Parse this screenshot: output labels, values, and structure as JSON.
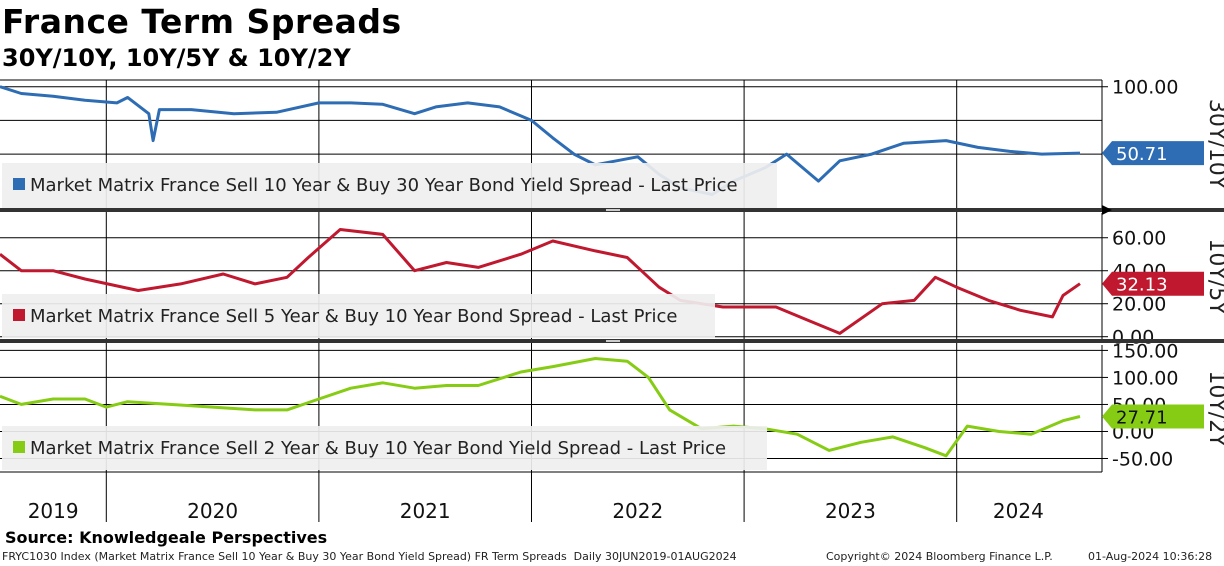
{
  "header": {
    "title": "France Term Spreads",
    "subtitle": "30Y/10Y, 10Y/5Y & 10Y/2Y"
  },
  "footer": {
    "source": "Source: Knowledgeale Perspectives",
    "description": "FRYC1030 Index (Market Matrix France Sell 10 Year & Buy 30 Year Bond Yield Spread) FR Term Spreads  Daily 30JUN2019-01AUG2024",
    "copyright": "Copyright© 2024 Bloomberg Finance L.P.",
    "timestamp": "01-Aug-2024 10:36:28"
  },
  "colors": {
    "blue": "#2E6DB4",
    "red": "#C0182F",
    "green": "#86CC14",
    "grid": "#000000",
    "legend_bg": "#EFEFEF"
  },
  "chart_data": {
    "type": "line",
    "x_axis": {
      "labels": [
        "2019",
        "2020",
        "2021",
        "2022",
        "2023",
        "2024"
      ],
      "start": 2019.5,
      "end": 2024.58
    },
    "panels": [
      {
        "id": "30y10y",
        "axis_title": "30Y/10Y",
        "legend": "Market Matrix France Sell 10 Year & Buy 30 Year Bond Yield Spread - Last Price",
        "last_value": "50.71",
        "ylim": [
          10,
          105
        ],
        "ticks": [
          "100.00"
        ],
        "tick_values": [
          100
        ],
        "gridlines": [
          100,
          75,
          50
        ],
        "series": [
          {
            "x": 2019.5,
            "y": 100
          },
          {
            "x": 2019.6,
            "y": 95
          },
          {
            "x": 2019.75,
            "y": 93
          },
          {
            "x": 2019.9,
            "y": 90
          },
          {
            "x": 2020.05,
            "y": 88
          },
          {
            "x": 2020.1,
            "y": 92
          },
          {
            "x": 2020.2,
            "y": 80
          },
          {
            "x": 2020.22,
            "y": 60
          },
          {
            "x": 2020.25,
            "y": 83
          },
          {
            "x": 2020.4,
            "y": 83
          },
          {
            "x": 2020.6,
            "y": 80
          },
          {
            "x": 2020.8,
            "y": 81
          },
          {
            "x": 2021.0,
            "y": 88
          },
          {
            "x": 2021.15,
            "y": 88
          },
          {
            "x": 2021.3,
            "y": 87
          },
          {
            "x": 2021.45,
            "y": 80
          },
          {
            "x": 2021.55,
            "y": 85
          },
          {
            "x": 2021.7,
            "y": 88
          },
          {
            "x": 2021.85,
            "y": 85
          },
          {
            "x": 2022.0,
            "y": 75
          },
          {
            "x": 2022.1,
            "y": 62
          },
          {
            "x": 2022.2,
            "y": 50
          },
          {
            "x": 2022.3,
            "y": 42
          },
          {
            "x": 2022.4,
            "y": 45
          },
          {
            "x": 2022.5,
            "y": 48
          },
          {
            "x": 2022.6,
            "y": 35
          },
          {
            "x": 2022.7,
            "y": 25
          },
          {
            "x": 2022.85,
            "y": 20
          },
          {
            "x": 2022.95,
            "y": 30
          },
          {
            "x": 2023.1,
            "y": 40
          },
          {
            "x": 2023.2,
            "y": 50
          },
          {
            "x": 2023.35,
            "y": 30
          },
          {
            "x": 2023.45,
            "y": 45
          },
          {
            "x": 2023.6,
            "y": 50
          },
          {
            "x": 2023.75,
            "y": 58
          },
          {
            "x": 2023.95,
            "y": 60
          },
          {
            "x": 2024.1,
            "y": 55
          },
          {
            "x": 2024.25,
            "y": 52
          },
          {
            "x": 2024.4,
            "y": 50
          },
          {
            "x": 2024.58,
            "y": 50.71
          }
        ]
      },
      {
        "id": "10y5y",
        "axis_title": "10Y/5Y",
        "legend": "Market Matrix France Sell 5 Year & Buy 10 Year Bond Spread - Last Price",
        "last_value": "32.13",
        "ylim": [
          -2,
          75
        ],
        "ticks": [
          "60.00",
          "40.00",
          "20.00",
          "0.00"
        ],
        "tick_values": [
          60,
          40,
          20,
          0
        ],
        "gridlines": [
          60,
          40,
          20,
          0
        ],
        "series": [
          {
            "x": 2019.5,
            "y": 50
          },
          {
            "x": 2019.6,
            "y": 40
          },
          {
            "x": 2019.75,
            "y": 40
          },
          {
            "x": 2019.9,
            "y": 35
          },
          {
            "x": 2020.15,
            "y": 28
          },
          {
            "x": 2020.35,
            "y": 32
          },
          {
            "x": 2020.55,
            "y": 38
          },
          {
            "x": 2020.7,
            "y": 32
          },
          {
            "x": 2020.85,
            "y": 36
          },
          {
            "x": 2020.95,
            "y": 48
          },
          {
            "x": 2021.1,
            "y": 65
          },
          {
            "x": 2021.3,
            "y": 62
          },
          {
            "x": 2021.45,
            "y": 40
          },
          {
            "x": 2021.6,
            "y": 45
          },
          {
            "x": 2021.75,
            "y": 42
          },
          {
            "x": 2021.95,
            "y": 50
          },
          {
            "x": 2022.1,
            "y": 58
          },
          {
            "x": 2022.3,
            "y": 52
          },
          {
            "x": 2022.45,
            "y": 48
          },
          {
            "x": 2022.6,
            "y": 30
          },
          {
            "x": 2022.7,
            "y": 22
          },
          {
            "x": 2022.9,
            "y": 18
          },
          {
            "x": 2023.15,
            "y": 18
          },
          {
            "x": 2023.3,
            "y": 10
          },
          {
            "x": 2023.45,
            "y": 2
          },
          {
            "x": 2023.65,
            "y": 20
          },
          {
            "x": 2023.8,
            "y": 22
          },
          {
            "x": 2023.9,
            "y": 36
          },
          {
            "x": 2024.0,
            "y": 30
          },
          {
            "x": 2024.15,
            "y": 22
          },
          {
            "x": 2024.3,
            "y": 16
          },
          {
            "x": 2024.45,
            "y": 12
          },
          {
            "x": 2024.5,
            "y": 25
          },
          {
            "x": 2024.58,
            "y": 32.13
          }
        ]
      },
      {
        "id": "10y2y",
        "axis_title": "10Y/2Y",
        "legend": "Market Matrix France Sell 2 Year & Buy 10 Year Bond Yield Spread - Last Price",
        "last_value": "27.71",
        "ylim": [
          -75,
          160
        ],
        "ticks": [
          "150.00",
          "100.00",
          "50.00",
          "0.00",
          "-50.00"
        ],
        "tick_values": [
          150,
          100,
          50,
          0,
          -50
        ],
        "gridlines": [
          150,
          100,
          50,
          0,
          -50
        ],
        "series": [
          {
            "x": 2019.5,
            "y": 65
          },
          {
            "x": 2019.6,
            "y": 50
          },
          {
            "x": 2019.75,
            "y": 60
          },
          {
            "x": 2019.9,
            "y": 60
          },
          {
            "x": 2020.0,
            "y": 45
          },
          {
            "x": 2020.1,
            "y": 55
          },
          {
            "x": 2020.3,
            "y": 50
          },
          {
            "x": 2020.5,
            "y": 45
          },
          {
            "x": 2020.7,
            "y": 40
          },
          {
            "x": 2020.85,
            "y": 40
          },
          {
            "x": 2021.0,
            "y": 60
          },
          {
            "x": 2021.15,
            "y": 80
          },
          {
            "x": 2021.3,
            "y": 90
          },
          {
            "x": 2021.45,
            "y": 80
          },
          {
            "x": 2021.6,
            "y": 85
          },
          {
            "x": 2021.75,
            "y": 85
          },
          {
            "x": 2021.95,
            "y": 110
          },
          {
            "x": 2022.1,
            "y": 120
          },
          {
            "x": 2022.3,
            "y": 135
          },
          {
            "x": 2022.45,
            "y": 130
          },
          {
            "x": 2022.55,
            "y": 100
          },
          {
            "x": 2022.65,
            "y": 40
          },
          {
            "x": 2022.8,
            "y": 5
          },
          {
            "x": 2022.95,
            "y": 10
          },
          {
            "x": 2023.1,
            "y": 5
          },
          {
            "x": 2023.25,
            "y": -5
          },
          {
            "x": 2023.4,
            "y": -35
          },
          {
            "x": 2023.55,
            "y": -20
          },
          {
            "x": 2023.7,
            "y": -10
          },
          {
            "x": 2023.85,
            "y": -30
          },
          {
            "x": 2023.95,
            "y": -45
          },
          {
            "x": 2024.05,
            "y": 10
          },
          {
            "x": 2024.2,
            "y": 0
          },
          {
            "x": 2024.35,
            "y": -5
          },
          {
            "x": 2024.5,
            "y": 20
          },
          {
            "x": 2024.58,
            "y": 27.71
          }
        ]
      }
    ]
  }
}
